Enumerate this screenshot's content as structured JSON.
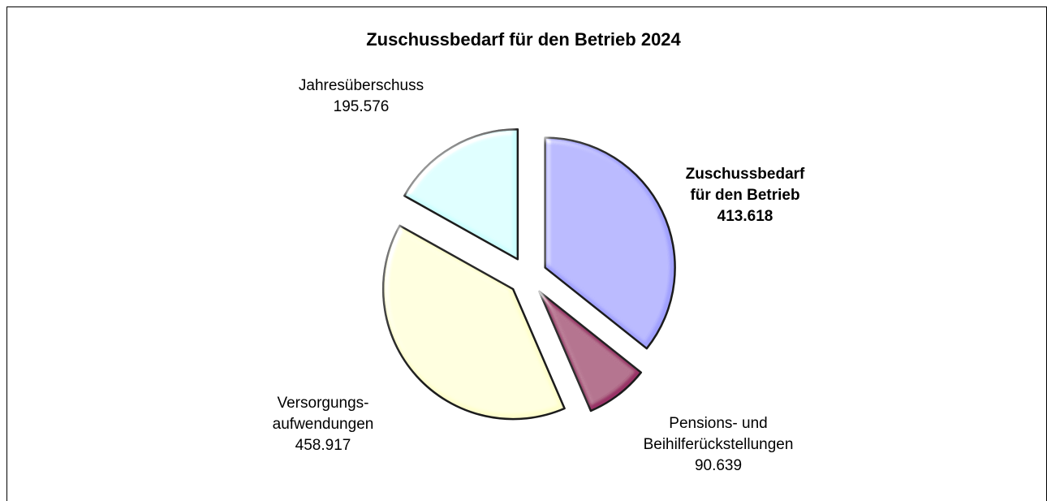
{
  "chart_data": {
    "type": "pie",
    "title": "Zuschussbedarf für den Betrieb 2024",
    "categories": [
      [
        "Zuschussbedarf",
        "für den Betrieb"
      ],
      [
        "Pensions- und",
        "Beihilferückstellungen"
      ],
      [
        "Versorgungs-",
        "aufwendungen"
      ],
      [
        "Jahresüberschuss"
      ]
    ],
    "values": [
      413618,
      90639,
      458917,
      195576
    ],
    "value_labels": [
      "413.618",
      "90.639",
      "458.917",
      "195.576"
    ],
    "colors": [
      "#a0a0ff",
      "#993366",
      "#ffffcc",
      "#ccffff"
    ]
  }
}
